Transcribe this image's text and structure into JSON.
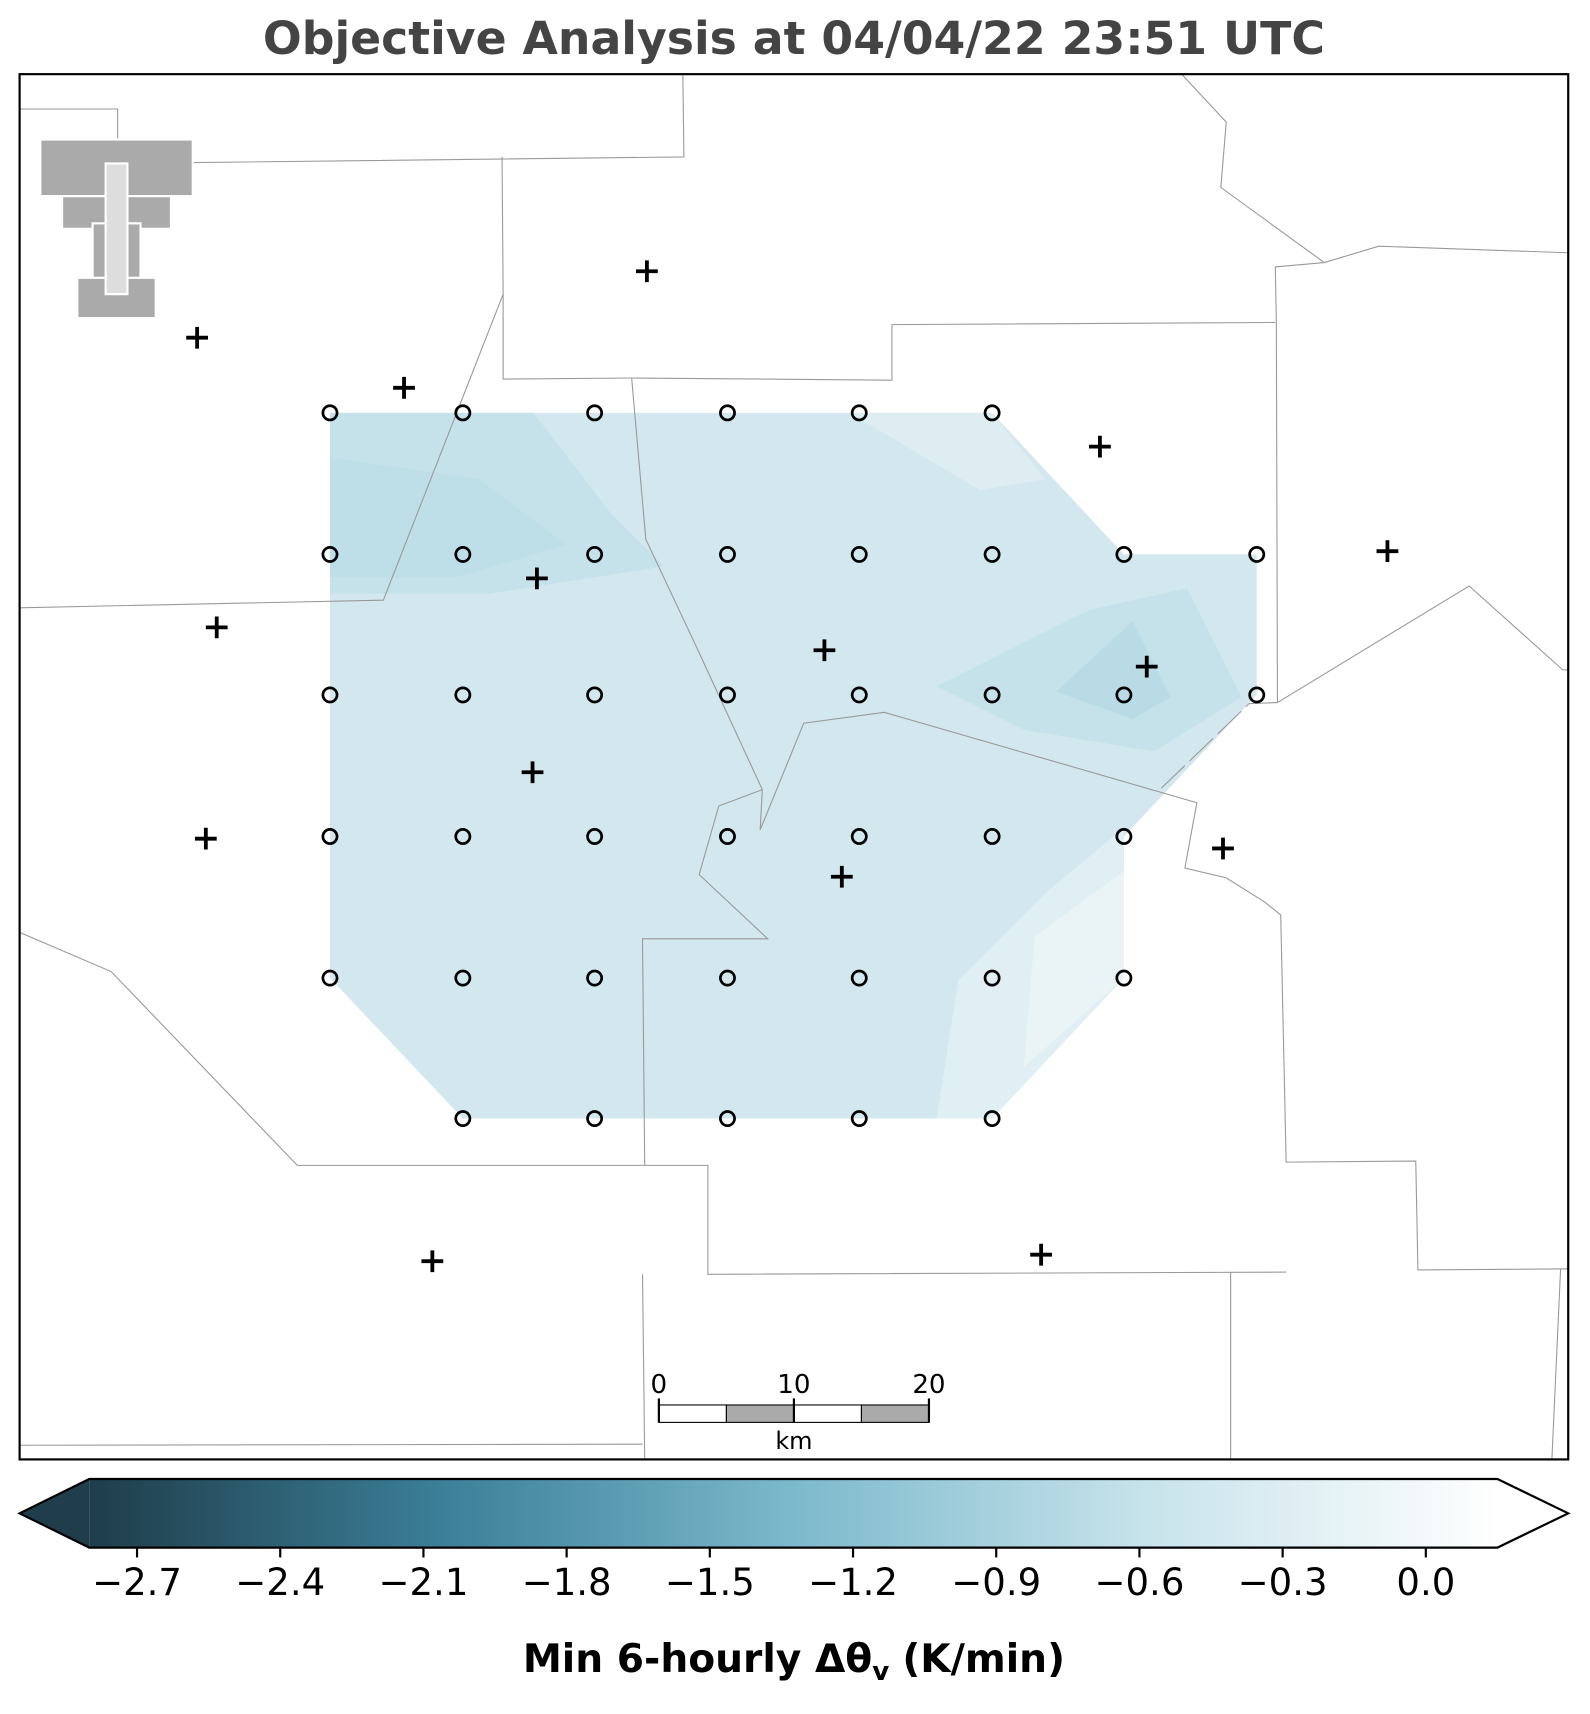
{
  "chart_data": {
    "type": "contour",
    "title": "Objective Analysis at 04/04/22 23:51 UTC",
    "colorbar": {
      "label": "Min 6-hourly Δθ",
      "label_subscript": "v",
      "label_units": "(K/min)",
      "xlim": [
        -2.8,
        0.15
      ],
      "xticks": [
        {
          "value": -2.7,
          "label": "−2.7"
        },
        {
          "value": -2.4,
          "label": "−2.4"
        },
        {
          "value": -2.1,
          "label": "−2.1"
        },
        {
          "value": -1.8,
          "label": "−1.8"
        },
        {
          "value": -1.5,
          "label": "−1.5"
        },
        {
          "value": -1.2,
          "label": "−1.2"
        },
        {
          "value": -0.9,
          "label": "−0.9"
        },
        {
          "value": -0.6,
          "label": "−0.6"
        },
        {
          "value": -0.3,
          "label": "−0.3"
        },
        {
          "value": 0,
          "label": "0.0"
        }
      ],
      "colormap": [
        "#1f3d4a",
        "#3b7f98",
        "#7cb9cc",
        "#c7e3eb",
        "#ffffff"
      ]
    },
    "scale_bar": {
      "xlim": [
        0,
        20
      ],
      "xticks": [
        0,
        10,
        20
      ],
      "unit": "km"
    }
  }
}
